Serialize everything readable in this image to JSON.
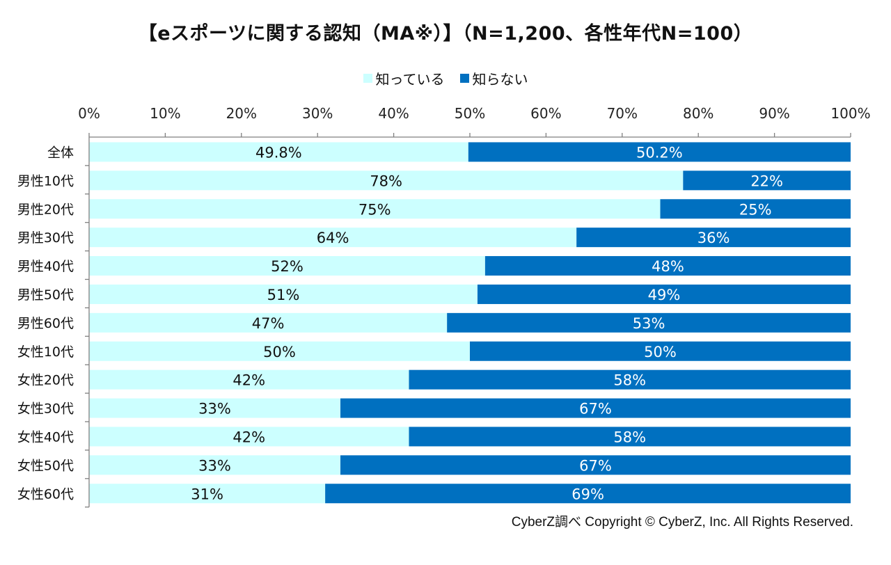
{
  "chart_data": {
    "type": "bar",
    "orientation": "horizontal",
    "stacked": true,
    "title": "【eスポーツに関する認知（MA※）】（N=1,200、各性年代N=100）",
    "xlabel": "",
    "ylabel": "",
    "xlim": [
      0,
      100
    ],
    "x_ticks": [
      "0%",
      "10%",
      "20%",
      "30%",
      "40%",
      "50%",
      "60%",
      "70%",
      "80%",
      "90%",
      "100%"
    ],
    "x_tick_values": [
      0,
      10,
      20,
      30,
      40,
      50,
      60,
      70,
      80,
      90,
      100
    ],
    "grid": false,
    "legend_position": "top-center",
    "categories": [
      "全体",
      "男性10代",
      "男性20代",
      "男性30代",
      "男性40代",
      "男性50代",
      "男性60代",
      "女性10代",
      "女性20代",
      "女性30代",
      "女性40代",
      "女性50代",
      "女性60代"
    ],
    "series": [
      {
        "name": "知っている",
        "color": "#CCFFFF",
        "label_color": "#111111",
        "values": [
          49.8,
          78,
          75,
          64,
          52,
          51,
          47,
          50,
          42,
          33,
          42,
          33,
          31
        ],
        "labels": [
          "49.8%",
          "78%",
          "75%",
          "64%",
          "52%",
          "51%",
          "47%",
          "50%",
          "42%",
          "33%",
          "42%",
          "33%",
          "31%"
        ]
      },
      {
        "name": "知らない",
        "color": "#0070C0",
        "label_color": "#FFFFFF",
        "values": [
          50.2,
          22,
          25,
          36,
          48,
          49,
          53,
          50,
          58,
          67,
          58,
          67,
          69
        ],
        "labels": [
          "50.2%",
          "22%",
          "25%",
          "36%",
          "48%",
          "49%",
          "53%",
          "50%",
          "58%",
          "67%",
          "58%",
          "67%",
          "69%"
        ]
      }
    ]
  },
  "credit": "CyberZ調べ Copyright © CyberZ, Inc. All Rights Reserved."
}
